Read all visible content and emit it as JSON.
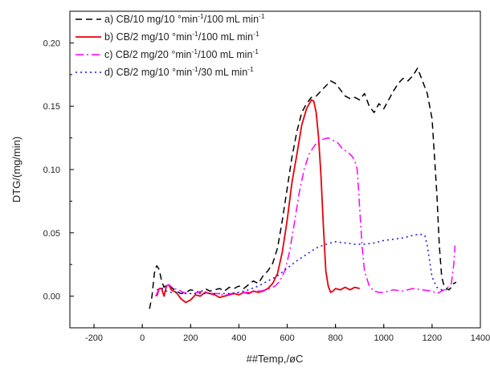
{
  "chart_data": {
    "type": "line",
    "title": "",
    "xlabel": "##Temp,/øC",
    "ylabel": "DTG/(mg/min)",
    "xlim": [
      -300,
      1400
    ],
    "ylim": [
      -0.025,
      0.225
    ],
    "x_ticks": [
      -200,
      0,
      200,
      400,
      600,
      800,
      1000,
      1200,
      1400
    ],
    "y_ticks": [
      0.0,
      0.05,
      0.1,
      0.15,
      0.2
    ],
    "grid": false,
    "legend_position": "top-left",
    "series": [
      {
        "name": "a) CB/10 mg/10 °min-1/100 mL min-1",
        "legend": {
          "prefix": "a) CB/10 mg/10 °min",
          "sup1": "-1",
          "mid": "/100 mL min",
          "sup2": "-1"
        },
        "color": "#000000",
        "dash": "8,5",
        "x": [
          30,
          40,
          50,
          55,
          60,
          70,
          80,
          90,
          100,
          120,
          140,
          160,
          180,
          200,
          220,
          240,
          260,
          280,
          300,
          320,
          340,
          360,
          380,
          400,
          420,
          440,
          460,
          480,
          500,
          520,
          540,
          560,
          580,
          600,
          620,
          640,
          660,
          680,
          700,
          720,
          740,
          760,
          780,
          800,
          820,
          840,
          860,
          880,
          900,
          920,
          940,
          960,
          980,
          1000,
          1020,
          1040,
          1060,
          1080,
          1100,
          1120,
          1140,
          1160,
          1180,
          1190,
          1200,
          1210,
          1220,
          1230,
          1240,
          1250,
          1260,
          1270,
          1280,
          1290,
          1300
        ],
        "y": [
          -0.01,
          0.0,
          0.018,
          0.022,
          0.024,
          0.021,
          0.012,
          0.007,
          0.009,
          0.007,
          0.004,
          0.002,
          0.003,
          0.005,
          0.004,
          0.003,
          0.006,
          0.004,
          0.005,
          0.006,
          0.004,
          0.007,
          0.006,
          0.008,
          0.006,
          0.009,
          0.012,
          0.01,
          0.016,
          0.02,
          0.026,
          0.038,
          0.06,
          0.085,
          0.11,
          0.13,
          0.145,
          0.152,
          0.157,
          0.158,
          0.162,
          0.166,
          0.17,
          0.168,
          0.163,
          0.158,
          0.156,
          0.157,
          0.155,
          0.16,
          0.15,
          0.145,
          0.152,
          0.148,
          0.155,
          0.162,
          0.168,
          0.172,
          0.17,
          0.174,
          0.18,
          0.17,
          0.16,
          0.15,
          0.14,
          0.11,
          0.08,
          0.04,
          0.015,
          0.008,
          0.006,
          0.005,
          0.007,
          0.01,
          0.011
        ]
      },
      {
        "name": "b) CB/2 mg/10 °min-1/100 mL min-1",
        "legend": {
          "prefix": "b) CB/2 mg/10 °min",
          "sup1": "-1",
          "mid": "/100 mL min",
          "sup2": "-1"
        },
        "color": "#e8000b",
        "dash": "",
        "x": [
          60,
          70,
          80,
          90,
          100,
          110,
          120,
          140,
          160,
          180,
          200,
          220,
          240,
          260,
          280,
          300,
          320,
          340,
          360,
          380,
          400,
          420,
          440,
          460,
          480,
          500,
          520,
          540,
          560,
          580,
          600,
          620,
          640,
          660,
          680,
          700,
          710,
          720,
          730,
          740,
          750,
          760,
          770,
          780,
          790,
          800,
          820,
          840,
          860,
          880,
          900
        ],
        "y": [
          0.0,
          0.006,
          0.006,
          0.0,
          0.008,
          0.009,
          0.005,
          0.003,
          -0.002,
          -0.005,
          -0.003,
          0.001,
          0.0,
          0.003,
          0.002,
          0.001,
          -0.001,
          0.0,
          0.001,
          0.002,
          0.001,
          0.003,
          0.002,
          0.004,
          0.003,
          0.004,
          0.006,
          0.01,
          0.018,
          0.035,
          0.06,
          0.09,
          0.112,
          0.135,
          0.148,
          0.155,
          0.154,
          0.145,
          0.125,
          0.095,
          0.055,
          0.02,
          0.008,
          0.003,
          0.004,
          0.006,
          0.005,
          0.007,
          0.005,
          0.007,
          0.006
        ]
      },
      {
        "name": "c) CB/2 mg/20 °min-1/100 mL min-1",
        "legend": {
          "prefix": "c) CB/2 mg/20 °min",
          "sup1": "-1",
          "mid": "/100 mL min",
          "sup2": "-1"
        },
        "color": "#ff00ff",
        "dash": "10,4,2,4",
        "x": [
          55,
          65,
          75,
          85,
          95,
          110,
          130,
          150,
          170,
          190,
          210,
          230,
          250,
          270,
          290,
          310,
          330,
          350,
          370,
          390,
          410,
          430,
          450,
          470,
          490,
          510,
          530,
          550,
          570,
          590,
          610,
          630,
          650,
          670,
          690,
          710,
          730,
          750,
          770,
          790,
          810,
          830,
          850,
          870,
          880,
          890,
          900,
          910,
          920,
          940,
          960,
          980,
          1000,
          1040,
          1080,
          1120,
          1160,
          1200,
          1220,
          1240,
          1260,
          1280,
          1290,
          1295
        ],
        "y": [
          0.0,
          0.004,
          0.007,
          0.006,
          0.008,
          0.009,
          0.006,
          0.005,
          0.003,
          0.002,
          0.002,
          0.003,
          0.004,
          0.003,
          0.002,
          0.002,
          0.001,
          0.001,
          0.002,
          0.003,
          0.002,
          0.003,
          0.003,
          0.004,
          0.004,
          0.005,
          0.006,
          0.008,
          0.012,
          0.02,
          0.035,
          0.058,
          0.082,
          0.1,
          0.112,
          0.118,
          0.123,
          0.124,
          0.125,
          0.123,
          0.121,
          0.116,
          0.114,
          0.11,
          0.107,
          0.1,
          0.07,
          0.04,
          0.02,
          0.008,
          0.004,
          0.003,
          0.003,
          0.005,
          0.004,
          0.006,
          0.005,
          0.004,
          0.002,
          0.004,
          0.006,
          0.01,
          0.025,
          0.04
        ]
      },
      {
        "name": "d) CB/2 mg/10 °min-1/30 mL min-1",
        "legend": {
          "prefix": "d) CB/2 mg/10 °min",
          "sup1": "-1",
          "mid": "/30 mL min",
          "sup2": "-1"
        },
        "color": "#1414e6",
        "dash": "2,4",
        "x": [
          60,
          80,
          100,
          120,
          140,
          160,
          180,
          200,
          240,
          280,
          320,
          360,
          400,
          440,
          480,
          520,
          560,
          600,
          640,
          680,
          720,
          760,
          800,
          840,
          880,
          920,
          960,
          1000,
          1040,
          1080,
          1120,
          1150,
          1170,
          1180,
          1200,
          1220,
          1240,
          1260
        ],
        "y": [
          0.005,
          0.006,
          0.004,
          0.003,
          0.003,
          0.002,
          0.002,
          0.002,
          0.002,
          0.002,
          0.002,
          0.002,
          0.003,
          0.005,
          0.008,
          0.012,
          0.016,
          0.022,
          0.028,
          0.033,
          0.038,
          0.041,
          0.043,
          0.042,
          0.041,
          0.041,
          0.042,
          0.044,
          0.045,
          0.046,
          0.048,
          0.049,
          0.048,
          0.04,
          0.015,
          0.007,
          0.005,
          0.005
        ]
      }
    ]
  }
}
